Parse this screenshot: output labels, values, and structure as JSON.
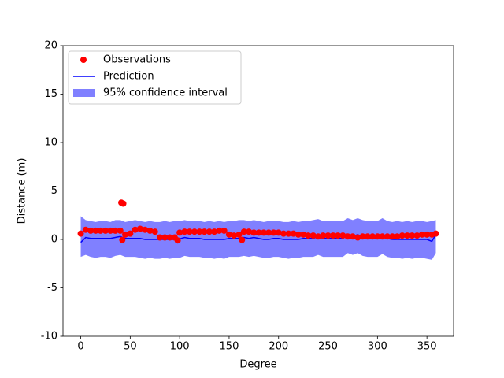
{
  "chart_data": {
    "type": "line",
    "xlabel": "Degree",
    "ylabel": "Distance (m)",
    "xlim": [
      -17.95,
      376.95
    ],
    "ylim": [
      -10,
      20
    ],
    "xticks": [
      0,
      50,
      100,
      150,
      200,
      250,
      300,
      350
    ],
    "yticks": [
      -10,
      -5,
      0,
      5,
      10,
      15,
      20
    ],
    "legend": "upper left",
    "series": [
      {
        "name": "Observations",
        "kind": "scatter",
        "color": "#ff0000",
        "x": [
          0,
          5,
          10,
          15,
          20,
          25,
          30,
          35,
          40,
          45,
          50,
          55,
          60,
          65,
          70,
          75,
          80,
          85,
          90,
          95,
          100,
          105,
          110,
          115,
          120,
          125,
          130,
          135,
          140,
          145,
          150,
          155,
          160,
          165,
          170,
          175,
          180,
          185,
          190,
          195,
          200,
          205,
          210,
          215,
          220,
          225,
          230,
          235,
          240,
          245,
          250,
          255,
          260,
          265,
          270,
          275,
          280,
          285,
          290,
          295,
          300,
          305,
          310,
          315,
          320,
          325,
          330,
          335,
          340,
          345,
          350,
          355,
          359,
          41,
          43,
          42,
          98,
          163
        ],
        "values": [
          0.6,
          1.0,
          0.9,
          0.9,
          0.9,
          0.9,
          0.9,
          0.9,
          0.9,
          0.5,
          0.6,
          1.0,
          1.1,
          1.0,
          0.9,
          0.8,
          0.2,
          0.2,
          0.2,
          0.2,
          0.7,
          0.8,
          0.8,
          0.8,
          0.8,
          0.8,
          0.8,
          0.8,
          0.9,
          0.9,
          0.5,
          0.4,
          0.5,
          0.8,
          0.8,
          0.7,
          0.7,
          0.7,
          0.7,
          0.7,
          0.7,
          0.6,
          0.6,
          0.6,
          0.5,
          0.5,
          0.4,
          0.4,
          0.3,
          0.4,
          0.4,
          0.4,
          0.4,
          0.4,
          0.3,
          0.3,
          0.2,
          0.3,
          0.3,
          0.3,
          0.3,
          0.3,
          0.3,
          0.3,
          0.3,
          0.4,
          0.4,
          0.4,
          0.4,
          0.5,
          0.5,
          0.5,
          0.6,
          3.8,
          3.7,
          -0.05,
          -0.1,
          -0.05
        ]
      },
      {
        "name": "Prediction",
        "kind": "line",
        "color": "#0000ff",
        "x": [
          0,
          5,
          10,
          15,
          20,
          25,
          30,
          35,
          40,
          45,
          50,
          55,
          60,
          65,
          70,
          75,
          80,
          85,
          90,
          95,
          100,
          105,
          110,
          115,
          120,
          125,
          130,
          135,
          140,
          145,
          150,
          155,
          160,
          165,
          170,
          175,
          180,
          185,
          190,
          195,
          200,
          205,
          210,
          215,
          220,
          225,
          230,
          235,
          240,
          245,
          250,
          255,
          260,
          265,
          270,
          275,
          280,
          285,
          290,
          295,
          300,
          305,
          310,
          315,
          320,
          325,
          330,
          335,
          340,
          345,
          350,
          355,
          359
        ],
        "values": [
          -0.3,
          0.2,
          0.1,
          0.1,
          0.1,
          0.1,
          0.1,
          0.2,
          0.3,
          0.1,
          0.1,
          0.1,
          0.1,
          0.0,
          0.0,
          0.0,
          0.0,
          0.0,
          0.0,
          0.0,
          0.05,
          0.2,
          0.1,
          0.1,
          0.1,
          0.0,
          0.0,
          0.0,
          0.0,
          0.0,
          0.1,
          0.1,
          0.1,
          0.2,
          0.1,
          0.2,
          0.1,
          0.0,
          0.0,
          0.1,
          0.1,
          0.0,
          0.0,
          0.0,
          0.0,
          0.1,
          0.1,
          0.1,
          0.3,
          0.1,
          0.1,
          0.1,
          0.1,
          0.1,
          0.5,
          0.3,
          0.5,
          0.2,
          0.1,
          0.1,
          0.1,
          0.4,
          0.1,
          0.0,
          0.0,
          0.0,
          0.0,
          0.0,
          0.0,
          0.0,
          0.0,
          -0.2,
          0.5
        ]
      },
      {
        "name": "95% confidence interval",
        "kind": "band",
        "color": "#8080ff",
        "x": [
          0,
          5,
          10,
          15,
          20,
          25,
          30,
          35,
          40,
          45,
          50,
          55,
          60,
          65,
          70,
          75,
          80,
          85,
          90,
          95,
          100,
          105,
          110,
          115,
          120,
          125,
          130,
          135,
          140,
          145,
          150,
          155,
          160,
          165,
          170,
          175,
          180,
          185,
          190,
          195,
          200,
          205,
          210,
          215,
          220,
          225,
          230,
          235,
          240,
          245,
          250,
          255,
          260,
          265,
          270,
          275,
          280,
          285,
          290,
          295,
          300,
          305,
          310,
          315,
          320,
          325,
          330,
          335,
          340,
          345,
          350,
          355,
          359
        ],
        "upper": [
          2.4,
          2.0,
          1.9,
          1.8,
          1.9,
          1.9,
          1.8,
          2.0,
          2.0,
          1.8,
          1.9,
          2.0,
          1.9,
          1.8,
          1.9,
          1.8,
          1.8,
          1.9,
          1.8,
          1.9,
          1.9,
          2.0,
          1.9,
          1.9,
          1.9,
          1.8,
          1.9,
          1.8,
          1.9,
          1.8,
          1.9,
          1.9,
          2.0,
          2.0,
          1.9,
          2.0,
          1.9,
          1.8,
          1.9,
          1.9,
          1.9,
          1.8,
          1.8,
          1.9,
          1.8,
          1.9,
          1.9,
          2.0,
          2.1,
          1.9,
          1.9,
          1.9,
          1.9,
          1.9,
          2.2,
          2.0,
          2.2,
          2.0,
          1.9,
          1.9,
          1.9,
          2.2,
          1.9,
          1.8,
          1.9,
          1.8,
          1.9,
          1.8,
          1.9,
          1.9,
          1.8,
          1.9,
          2.0
        ],
        "lower": [
          -1.8,
          -1.6,
          -1.8,
          -1.9,
          -1.8,
          -1.8,
          -1.9,
          -1.7,
          -1.6,
          -1.8,
          -1.8,
          -1.8,
          -1.9,
          -2.0,
          -1.9,
          -2.0,
          -2.0,
          -1.9,
          -2.0,
          -1.9,
          -1.9,
          -1.7,
          -1.8,
          -1.8,
          -1.8,
          -1.9,
          -1.9,
          -2.0,
          -1.9,
          -2.0,
          -1.8,
          -1.8,
          -1.8,
          -1.7,
          -1.8,
          -1.7,
          -1.8,
          -1.9,
          -1.9,
          -1.8,
          -1.8,
          -1.9,
          -2.0,
          -1.9,
          -1.9,
          -1.8,
          -1.8,
          -1.8,
          -1.6,
          -1.8,
          -1.8,
          -1.8,
          -1.8,
          -1.8,
          -1.4,
          -1.6,
          -1.4,
          -1.7,
          -1.8,
          -1.8,
          -1.8,
          -1.5,
          -1.8,
          -1.9,
          -1.9,
          -2.0,
          -1.9,
          -2.0,
          -1.9,
          -1.9,
          -2.0,
          -2.1,
          -1.4
        ]
      }
    ]
  }
}
